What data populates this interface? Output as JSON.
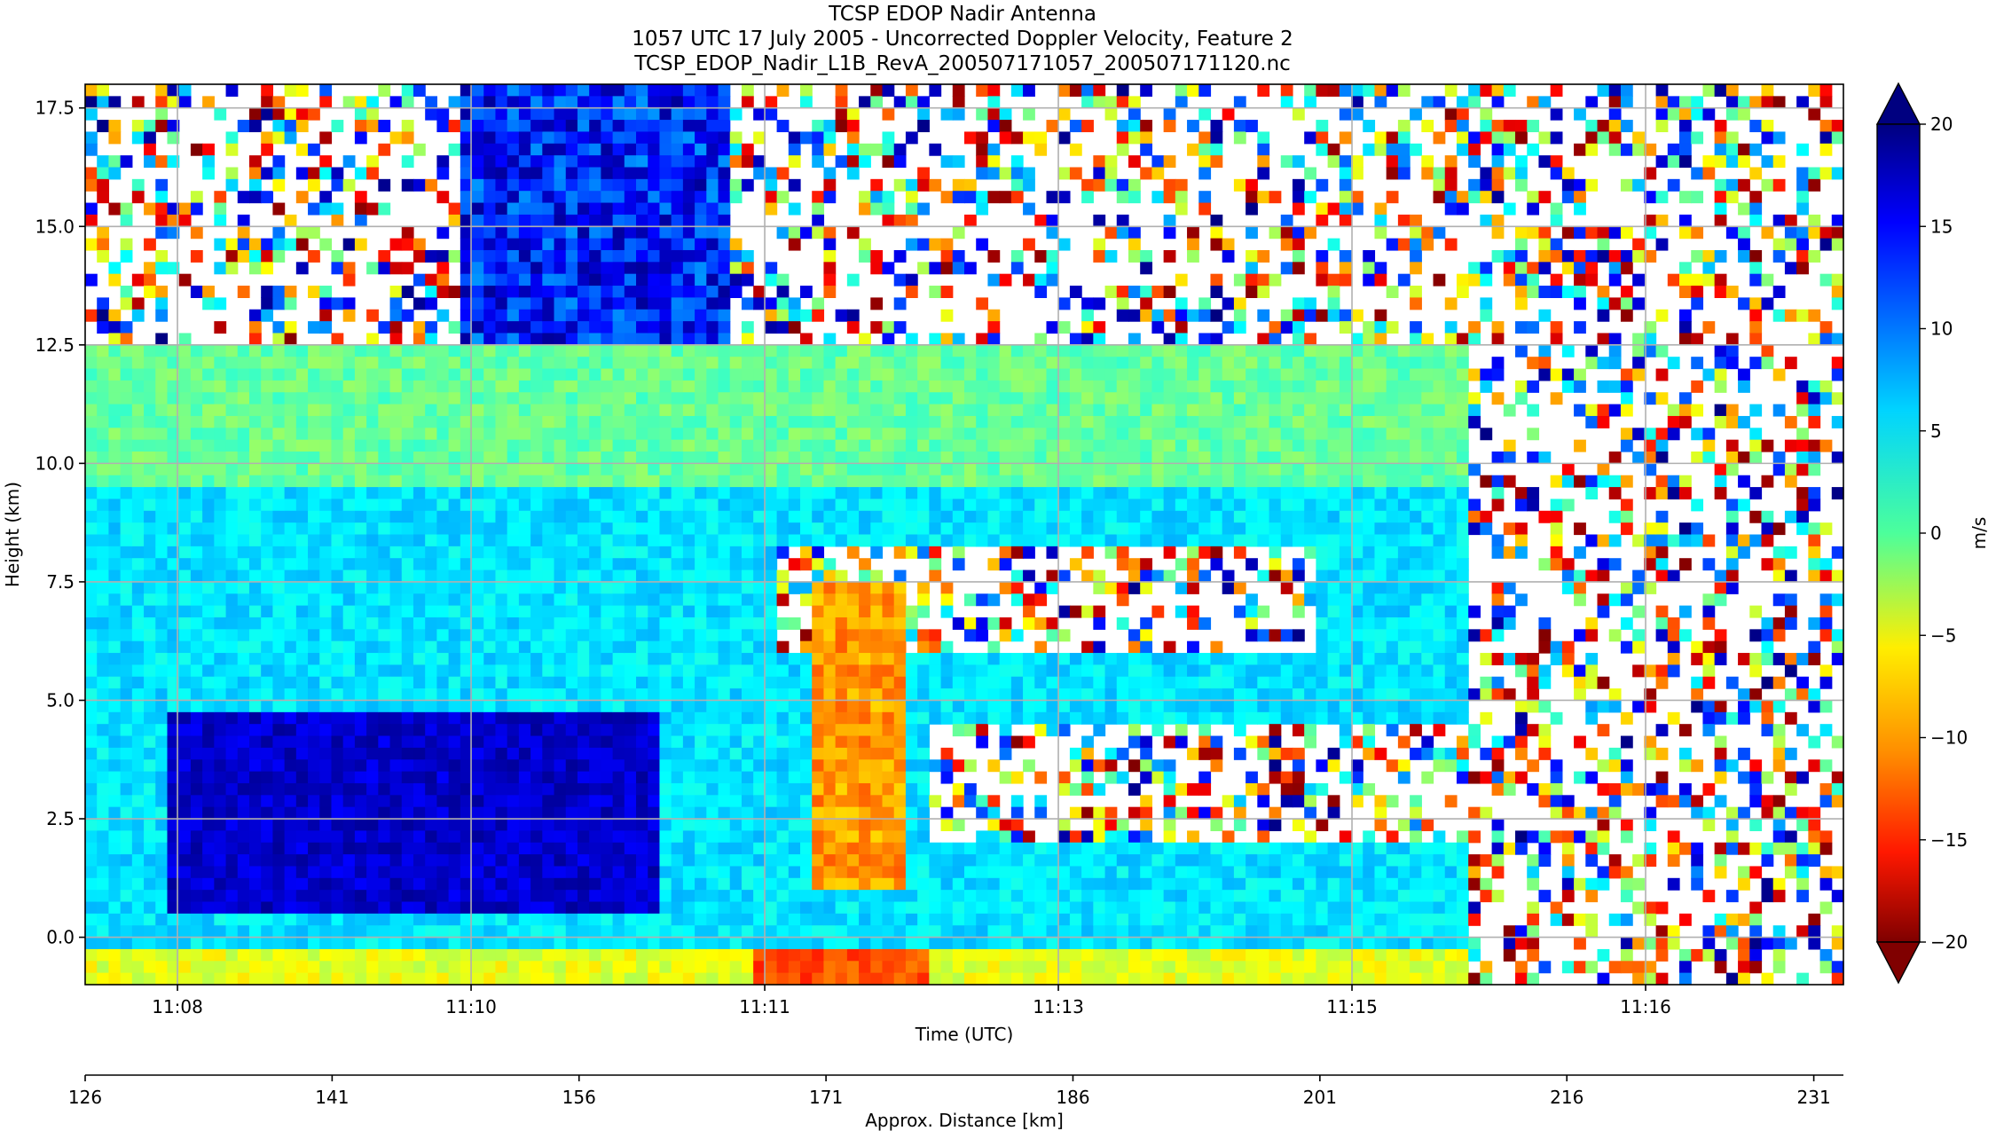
{
  "title": {
    "line1": "TCSP EDOP Nadir Antenna",
    "line2": "1057 UTC 17 July 2005 - Uncorrected Doppler Velocity, Feature 2",
    "line3": "TCSP_EDOP_Nadir_L1B_RevA_200507171057_200507171120.nc"
  },
  "chart_data": {
    "type": "heatmap",
    "title": "TCSP EDOP Nadir Antenna",
    "subtitle": "1057 UTC 17 July 2005 - Uncorrected Doppler Velocity, Feature 2",
    "xlabel": "Time (UTC)",
    "ylabel": "Height (km)",
    "secondary_xlabel": "Approx. Distance [km]",
    "xticks": [
      "11:08",
      "11:10",
      "11:11",
      "11:13",
      "11:15",
      "11:16"
    ],
    "xtick_fraction": [
      0.0525,
      0.2195,
      0.3865,
      0.5535,
      0.7205,
      0.8875
    ],
    "yticks": [
      0.0,
      2.5,
      5.0,
      7.5,
      10.0,
      12.5,
      15.0,
      17.5
    ],
    "yticks_text": [
      "0.0",
      "2.5",
      "5.0",
      "7.5",
      "10.0",
      "12.5",
      "15.0",
      "17.5"
    ],
    "ylim": [
      -1.0,
      18.0
    ],
    "distance_ticks": [
      126,
      141,
      156,
      171,
      186,
      201,
      216,
      231
    ],
    "distance_range": [
      126,
      232.8
    ],
    "colorbar": {
      "label": "m/s",
      "range": [
        -20,
        20
      ],
      "ticks": [
        20,
        15,
        10,
        5,
        0,
        -5,
        -10,
        -15,
        -20
      ],
      "ticks_text": [
        "20",
        "15",
        "10",
        "5",
        "0",
        "−5",
        "−10",
        "−15",
        "−20"
      ],
      "extend": "both",
      "colormap": "jet_r"
    },
    "grid": true,
    "features": {
      "strong_downward_core": {
        "value": 17,
        "height_range": [
          0.4,
          4.7
        ]
      },
      "upper_noise_region": {
        "height_range": [
          12.5,
          18.0
        ]
      },
      "noise_only_segment": {
        "x_fraction_range": [
          0.788,
          1.0
        ]
      },
      "surface_return": {
        "height_range": [
          -1.0,
          -0.2
        ],
        "value": -12
      }
    }
  }
}
